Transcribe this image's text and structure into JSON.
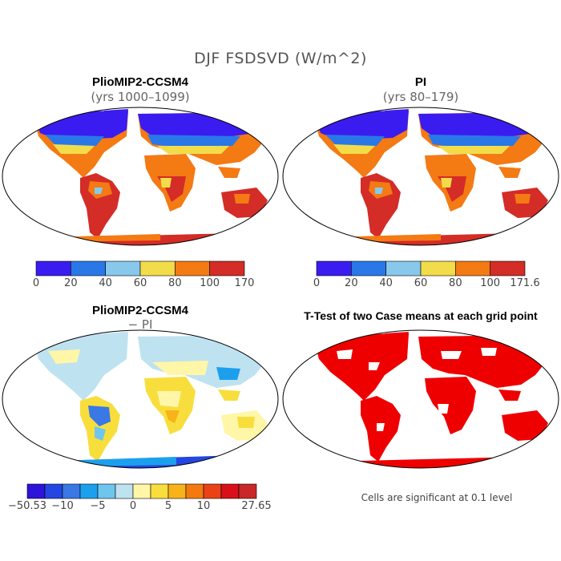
{
  "title": "DJF FSDSVD (W/m^2)",
  "panels": {
    "top_left": {
      "title": "PlioMIP2-CCSM4",
      "subtitle": "(yrs 1000–1099)"
    },
    "top_right": {
      "title": "PI",
      "subtitle": "(yrs 80–179)"
    },
    "bottom_left": {
      "title": "PlioMIP2-CCSM4",
      "subtitle": "− PI"
    },
    "bottom_right": {
      "title": "T-Test of two Case means at each grid point",
      "footnote": "Cells are significant at 0.1 level"
    }
  },
  "colorbars": {
    "top_left": {
      "colors": [
        "#3a1cf0",
        "#2a78e8",
        "#88c8ec",
        "#f2dc4a",
        "#f47a14",
        "#d42c26"
      ],
      "labels": [
        "0",
        "20",
        "40",
        "60",
        "80",
        "100",
        "170"
      ]
    },
    "top_right": {
      "colors": [
        "#3a1cf0",
        "#2a78e8",
        "#88c8ec",
        "#f2dc4a",
        "#f47a14",
        "#d42c26"
      ],
      "labels": [
        "0",
        "20",
        "40",
        "60",
        "80",
        "100",
        "171.6"
      ]
    },
    "bottom_left": {
      "colors": [
        "#2e14d8",
        "#2446e2",
        "#3a78e6",
        "#1ca0ee",
        "#6ec6ee",
        "#bfe2f0",
        "#fff6a8",
        "#f8de3c",
        "#f8b21a",
        "#f47a10",
        "#ea4216",
        "#d8101a",
        "#c82828"
      ],
      "labels": [
        {
          "text": "−50.53",
          "at": 0
        },
        {
          "text": "−10",
          "at": 2
        },
        {
          "text": "−5",
          "at": 4
        },
        {
          "text": "0",
          "at": 6
        },
        {
          "text": "5",
          "at": 8
        },
        {
          "text": "10",
          "at": 10
        },
        {
          "text": "27.65",
          "at": 13
        }
      ]
    }
  },
  "map_colors": {
    "ocean": "#ffffff",
    "outline": "#000000",
    "significant": "#ee0000"
  }
}
